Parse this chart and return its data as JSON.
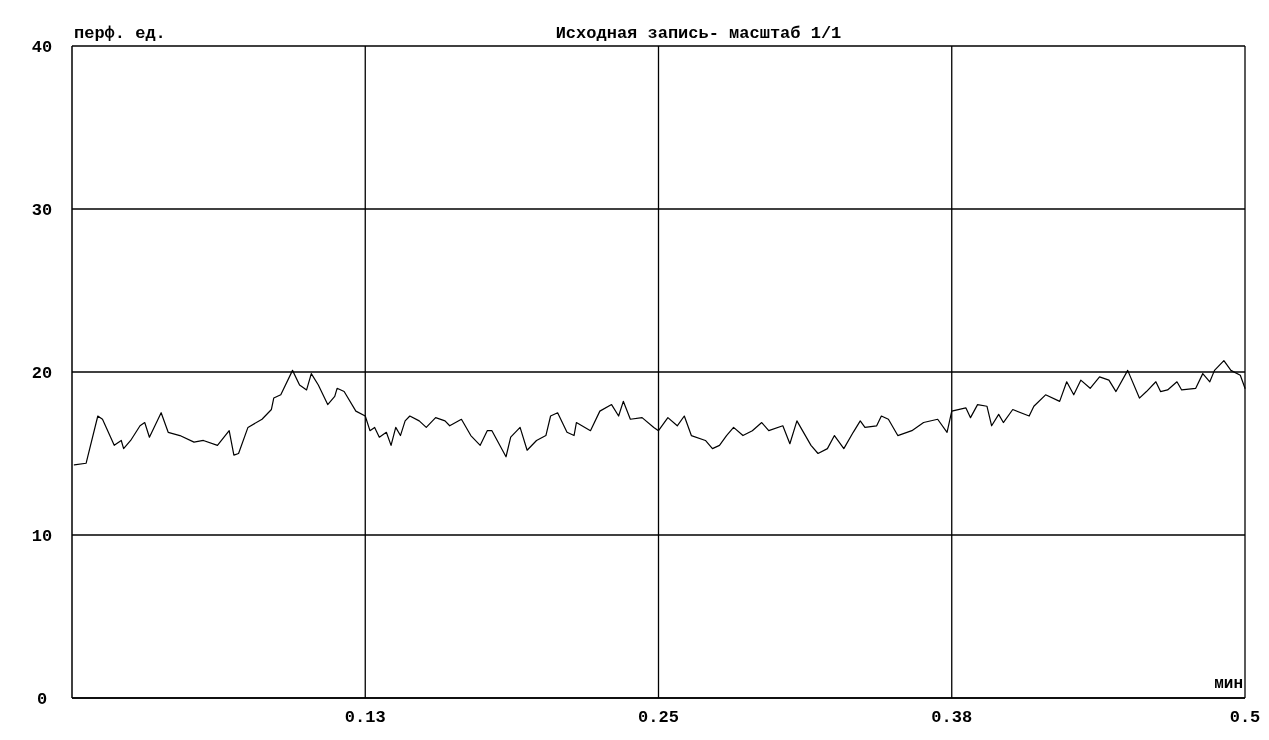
{
  "chart_data": {
    "type": "line",
    "title": "Исходная запись- масштаб 1/1",
    "xlabel": "мин",
    "ylabel": "перф. ед.",
    "xlim": [
      0,
      0.5
    ],
    "xticks": [
      {
        "value": 0.125,
        "label": "0.13"
      },
      0.25,
      {
        "value": 0.375,
        "label": "0.38"
      },
      0.5
    ],
    "ylim": [
      0,
      40
    ],
    "yticks": [
      0,
      10,
      20,
      30,
      40
    ],
    "grid": true,
    "series": [
      {
        "color": "#000000",
        "x": [
          0.001,
          0.006,
          0.011,
          0.013,
          0.018,
          0.021,
          0.022,
          0.025,
          0.029,
          0.031,
          0.033,
          0.038,
          0.041,
          0.046,
          0.052,
          0.056,
          0.062,
          0.067,
          0.069,
          0.071,
          0.075,
          0.081,
          0.085,
          0.086,
          0.089,
          0.094,
          0.097,
          0.1,
          0.102,
          0.105,
          0.109,
          0.112,
          0.113,
          0.116,
          0.121,
          0.125,
          0.127,
          0.129,
          0.131,
          0.134,
          0.136,
          0.138,
          0.14,
          0.142,
          0.144,
          0.148,
          0.151,
          0.155,
          0.159,
          0.161,
          0.166,
          0.17,
          0.174,
          0.177,
          0.179,
          0.185,
          0.187,
          0.191,
          0.194,
          0.198,
          0.202,
          0.204,
          0.207,
          0.211,
          0.214,
          0.215,
          0.221,
          0.225,
          0.23,
          0.233,
          0.235,
          0.238,
          0.243,
          0.248,
          0.25,
          0.254,
          0.258,
          0.261,
          0.264,
          0.27,
          0.273,
          0.276,
          0.279,
          0.282,
          0.286,
          0.29,
          0.294,
          0.297,
          0.303,
          0.306,
          0.309,
          0.315,
          0.318,
          0.322,
          0.325,
          0.329,
          0.333,
          0.336,
          0.338,
          0.343,
          0.345,
          0.348,
          0.352,
          0.358,
          0.363,
          0.369,
          0.373,
          0.375,
          0.381,
          0.383,
          0.386,
          0.39,
          0.392,
          0.395,
          0.397,
          0.401,
          0.408,
          0.41,
          0.415,
          0.421,
          0.424,
          0.427,
          0.43,
          0.434,
          0.438,
          0.442,
          0.445,
          0.45,
          0.455,
          0.458,
          0.462,
          0.464,
          0.467,
          0.471,
          0.473,
          0.479,
          0.482,
          0.485,
          0.487,
          0.491,
          0.494,
          0.498,
          0.5
        ],
        "values": [
          14.3,
          14.4,
          17.3,
          17.1,
          15.5,
          15.8,
          15.3,
          15.8,
          16.7,
          16.9,
          16.0,
          17.5,
          16.3,
          16.1,
          15.7,
          15.8,
          15.5,
          16.4,
          14.9,
          15.0,
          16.6,
          17.1,
          17.7,
          18.4,
          18.6,
          20.1,
          19.2,
          18.9,
          19.9,
          19.2,
          18.0,
          18.5,
          19.0,
          18.8,
          17.6,
          17.3,
          16.4,
          16.6,
          16.0,
          16.3,
          15.5,
          16.6,
          16.1,
          17.0,
          17.3,
          17.0,
          16.6,
          17.2,
          17.0,
          16.7,
          17.1,
          16.1,
          15.5,
          16.4,
          16.4,
          14.8,
          16.0,
          16.6,
          15.2,
          15.8,
          16.1,
          17.3,
          17.5,
          16.3,
          16.1,
          16.9,
          16.4,
          17.6,
          18.0,
          17.3,
          18.2,
          17.1,
          17.2,
          16.6,
          16.4,
          17.2,
          16.7,
          17.3,
          16.1,
          15.8,
          15.3,
          15.5,
          16.1,
          16.6,
          16.1,
          16.4,
          16.9,
          16.4,
          16.7,
          15.6,
          17.0,
          15.5,
          15.0,
          15.3,
          16.1,
          15.3,
          16.3,
          17.0,
          16.6,
          16.7,
          17.3,
          17.1,
          16.1,
          16.4,
          16.9,
          17.1,
          16.3,
          17.6,
          17.8,
          17.2,
          18.0,
          17.9,
          16.7,
          17.4,
          16.9,
          17.7,
          17.3,
          17.9,
          18.6,
          18.2,
          19.4,
          18.6,
          19.5,
          19.0,
          19.7,
          19.5,
          18.8,
          20.1,
          18.4,
          18.8,
          19.4,
          18.8,
          18.9,
          19.4,
          18.9,
          19.0,
          19.9,
          19.4,
          20.1,
          20.7,
          20.1,
          19.8,
          19.0
        ]
      }
    ]
  }
}
